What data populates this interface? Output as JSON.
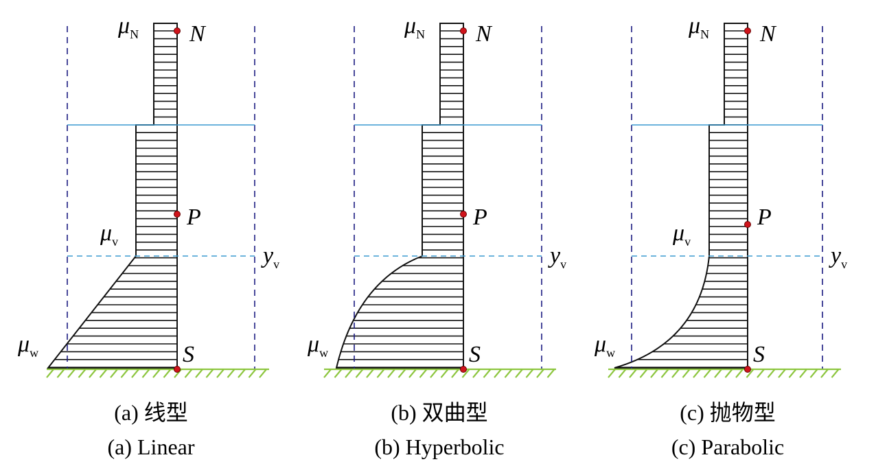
{
  "panels": [
    {
      "caption_cn": "(a) 线型",
      "caption_en": "(a) Linear",
      "labels": {
        "mu_n": {
          "symbol": "μ",
          "sub": "N"
        },
        "n": "N",
        "p": "P",
        "s": "S",
        "mu_v": {
          "symbol": "μ",
          "sub": "v"
        },
        "mu_w": {
          "symbol": "μ",
          "sub": "w"
        },
        "y_v": {
          "symbol": "y",
          "sub": "v"
        }
      }
    },
    {
      "caption_cn": "(b) 双曲型",
      "caption_en": "(b) Hyperbolic",
      "labels": {
        "mu_n": {
          "symbol": "μ",
          "sub": "N"
        },
        "n": "N",
        "p": "P",
        "s": "S",
        "mu_v": {
          "symbol": "μ",
          "sub": "v"
        },
        "mu_w": {
          "symbol": "μ",
          "sub": "w"
        },
        "y_v": {
          "symbol": "y",
          "sub": "v"
        }
      }
    },
    {
      "caption_cn": "(c) 抛物型",
      "caption_en": "(c) Parabolic",
      "labels": {
        "mu_n": {
          "symbol": "μ",
          "sub": "N"
        },
        "n": "N",
        "p": "P",
        "s": "S",
        "mu_v": {
          "symbol": "μ",
          "sub": "v"
        },
        "mu_w": {
          "symbol": "μ",
          "sub": "w"
        },
        "y_v": {
          "symbol": "y",
          "sub": "v"
        }
      }
    }
  ]
}
